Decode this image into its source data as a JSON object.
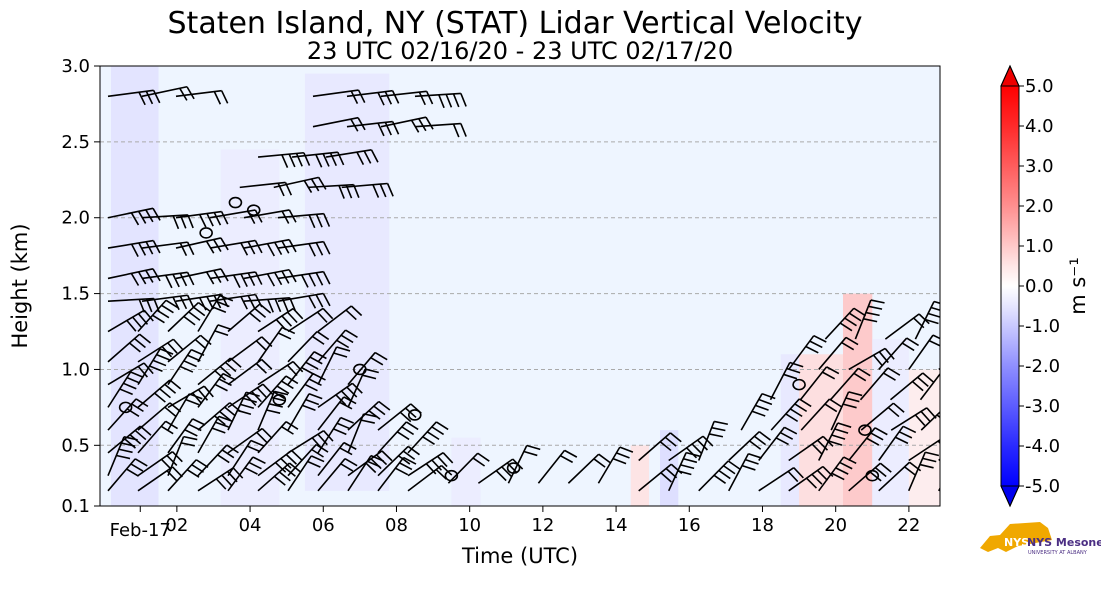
{
  "chart_data": {
    "type": "heatmap",
    "title": "Staten Island, NY (STAT) Lidar Vertical Velocity",
    "subtitle": "23 UTC 02/16/20 - 23 UTC 02/17/20",
    "xlabel": "Time (UTC)",
    "ylabel": "Height (km)",
    "x_tick_labels": [
      {
        "t": 1.0,
        "label": "Feb-17"
      },
      {
        "t": 2.0,
        "label": "02"
      },
      {
        "t": 4.0,
        "label": "04"
      },
      {
        "t": 6.0,
        "label": "06"
      },
      {
        "t": 8.0,
        "label": "08"
      },
      {
        "t": 10.0,
        "label": "10"
      },
      {
        "t": 12.0,
        "label": "12"
      },
      {
        "t": 14.0,
        "label": "14"
      },
      {
        "t": 16.0,
        "label": "16"
      },
      {
        "t": 18.0,
        "label": "18"
      },
      {
        "t": 20.0,
        "label": "20"
      },
      {
        "t": 22.0,
        "label": "22"
      }
    ],
    "xlim_hours_utc": [
      -0.1,
      22.85
    ],
    "y_ticks": [
      0.1,
      0.5,
      1.0,
      1.5,
      2.0,
      2.5,
      3.0
    ],
    "y_tick_labels": [
      "0.1",
      "0.5",
      "1.0",
      "1.5",
      "2.0",
      "2.5",
      "3.0"
    ],
    "ylim": [
      0.1,
      3.0
    ],
    "grid": "horizontal dashed",
    "colorbar": {
      "label": "m s⁻¹",
      "ticks": [
        -5,
        -4,
        -3,
        -2,
        -1,
        0,
        1,
        2,
        3,
        4,
        5
      ],
      "tick_labels": [
        "-5.0",
        "-4.0",
        "-3.0",
        "-2.0",
        "-1.0",
        "0.0",
        "1.0",
        "2.0",
        "3.0",
        "4.0",
        "5.0"
      ],
      "range": [
        -5,
        5
      ],
      "extend": "both",
      "colors": {
        "min": "#0000ff",
        "mid": "#ffffff",
        "max": "#ff0000"
      }
    },
    "vertical_velocity_regions": [
      {
        "t": [
          0.2,
          1.5
        ],
        "h": [
          0.1,
          3.0
        ],
        "w": -0.6
      },
      {
        "t": [
          3.2,
          4.8
        ],
        "h": [
          0.1,
          2.45
        ],
        "w": -0.4
      },
      {
        "t": [
          5.5,
          7.8
        ],
        "h": [
          0.2,
          2.95
        ],
        "w": -0.5
      },
      {
        "t": [
          9.5,
          10.3
        ],
        "h": [
          0.1,
          0.55
        ],
        "w": -0.4
      },
      {
        "t": [
          14.4,
          14.9
        ],
        "h": [
          0.1,
          0.5
        ],
        "w": 0.6
      },
      {
        "t": [
          15.2,
          15.7
        ],
        "h": [
          0.1,
          0.6
        ],
        "w": -0.7
      },
      {
        "t": [
          18.5,
          19.0
        ],
        "h": [
          0.1,
          1.1
        ],
        "w": -0.5
      },
      {
        "t": [
          19.0,
          20.2
        ],
        "h": [
          0.1,
          1.1
        ],
        "w": 0.7
      },
      {
        "t": [
          20.2,
          21.0
        ],
        "h": [
          0.1,
          1.5
        ],
        "w": 1.2
      },
      {
        "t": [
          21.0,
          22.0
        ],
        "h": [
          0.1,
          1.2
        ],
        "w": -0.4
      },
      {
        "t": [
          22.0,
          22.85
        ],
        "h": [
          0.1,
          1.0
        ],
        "w": 0.4
      }
    ],
    "wind_barb_rows": [
      {
        "t": [
          -0.1,
          9.0
        ],
        "h": 0.2
      },
      {
        "t": [
          -0.1,
          8.8
        ],
        "h": 0.3
      },
      {
        "t": [
          -0.1,
          8.6
        ],
        "h": 0.45
      },
      {
        "t": [
          -0.1,
          8.0
        ],
        "h": 0.6
      },
      {
        "t": [
          -0.1,
          7.4
        ],
        "h": 0.75
      },
      {
        "t": [
          -0.1,
          7.0
        ],
        "h": 0.9
      },
      {
        "t": [
          -0.1,
          6.6
        ],
        "h": 1.05
      },
      {
        "t": [
          -0.1,
          6.0
        ],
        "h": 1.25
      },
      {
        "t": [
          -0.1,
          5.5
        ],
        "h": 1.45
      },
      {
        "t": [
          -0.1,
          5.5
        ],
        "h": 1.6
      },
      {
        "t": [
          -0.1,
          5.0
        ],
        "h": 1.8
      },
      {
        "t": [
          -0.1,
          5.5
        ],
        "h": 2.0
      },
      {
        "t": [
          3.5,
          6.8
        ],
        "h": 2.2
      },
      {
        "t": [
          4.0,
          6.8
        ],
        "h": 2.4
      },
      {
        "t": [
          5.5,
          8.7
        ],
        "h": 2.6
      },
      {
        "t": [
          5.5,
          8.7
        ],
        "h": 2.8
      },
      {
        "t": [
          -0.1,
          2.2
        ],
        "h": 2.8
      },
      {
        "t": [
          9.2,
          14.2
        ],
        "h": 0.25
      },
      {
        "t": [
          14.4,
          22.85
        ],
        "h": 0.2
      },
      {
        "t": [
          14.4,
          22.85
        ],
        "h": 0.4
      },
      {
        "t": [
          17.2,
          22.85
        ],
        "h": 0.6
      },
      {
        "t": [
          18.0,
          22.85
        ],
        "h": 0.8
      },
      {
        "t": [
          18.5,
          22.85
        ],
        "h": 1.0
      },
      {
        "t": [
          19.5,
          22.85
        ],
        "h": 1.2
      }
    ]
  },
  "logo": {
    "text": "NYS Mesonet",
    "subtext": "UNIVERSITY AT ALBANY",
    "color": "#4b2e83",
    "state_color": "#f0a800"
  }
}
